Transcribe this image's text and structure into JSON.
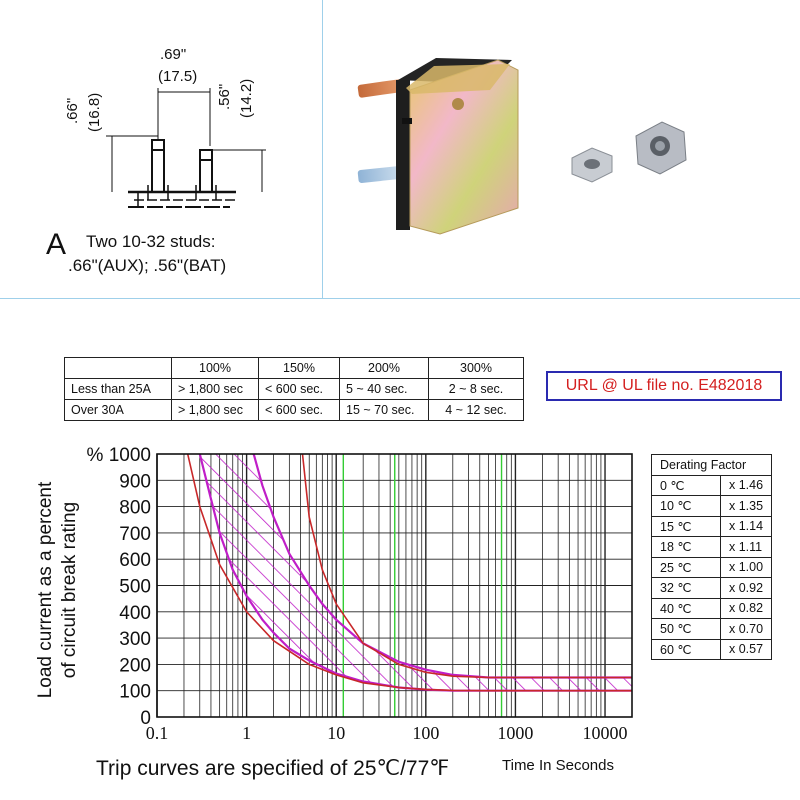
{
  "drawing": {
    "width_label_in": ".69\"",
    "width_label_mm": "(17.5)",
    "aux_height_in": ".66\"",
    "aux_height_mm": "(16.8)",
    "bat_height_in": ".56\"",
    "bat_height_mm": "(14.2)",
    "letter": "A",
    "studs_line1": "Two 10-32 studs:",
    "studs_line2": ".66\"(AUX); .56\"(BAT)"
  },
  "colors": {
    "trip_band": "#c01ec8",
    "curve": "#c8282a",
    "green_lines": "#33cc33",
    "ul_text": "#d42020",
    "ul_border": "#2a2ab0",
    "divider": "#9fd0ea"
  },
  "trip_table": {
    "headers": [
      "",
      "100%",
      "150%",
      "200%",
      "300%"
    ],
    "rows": [
      [
        "Less than 25A",
        "> 1,800 sec",
        "< 600 sec.",
        "5 ~ 40 sec.",
        "2 ~ 8 sec."
      ],
      [
        "Over 30A",
        "> 1,800 sec",
        "< 600 sec.",
        "15 ~ 70 sec.",
        "4 ~ 12 sec."
      ]
    ]
  },
  "ul_note": "URL @ UL file no. E482018",
  "derating": {
    "title": "Derating Factor",
    "rows": [
      [
        "0 ℃",
        "x 1.46"
      ],
      [
        "10 ℃",
        "x 1.35"
      ],
      [
        "15 ℃",
        "x 1.14"
      ],
      [
        "18 ℃",
        "x 1.11"
      ],
      [
        "25 ℃",
        "x 1.00"
      ],
      [
        "32 ℃",
        "x 0.92"
      ],
      [
        "40 ℃",
        "x 0.82"
      ],
      [
        "50 ℃",
        "x 0.70"
      ],
      [
        "60 ℃",
        "x 0.57"
      ]
    ]
  },
  "chart_data": {
    "type": "line",
    "xscale": "log",
    "xlim": [
      0.1,
      20000
    ],
    "ylim": [
      0,
      1000
    ],
    "y_ticks": [
      0,
      100,
      200,
      300,
      400,
      500,
      600,
      700,
      800,
      900,
      1000
    ],
    "y_tick_labels": [
      "0",
      "100",
      "200",
      "300",
      "400",
      "500",
      "600",
      "700",
      "800",
      "900",
      "% 1000"
    ],
    "x_ticks": [
      0.1,
      1,
      10,
      100,
      1000,
      10000
    ],
    "x_tick_labels": [
      "0.1",
      "1",
      "10",
      "100",
      "1000",
      "10000"
    ],
    "ylabel_line1": "Load current as a percent",
    "ylabel_line2": "of circuit break rating",
    "xlabel": "Time In Seconds",
    "footer": "Trip curves are specified of 25℃/77℉",
    "green_lines_x": [
      12,
      45,
      700
    ],
    "grid": true,
    "series": [
      {
        "role": "band-lower",
        "x": [
          0.3,
          0.4,
          0.5,
          0.7,
          1,
          1.5,
          2,
          3,
          5,
          10,
          20,
          50,
          100,
          200,
          500,
          1000,
          20000
        ],
        "y": [
          1000,
          830,
          700,
          560,
          460,
          370,
          320,
          260,
          215,
          165,
          135,
          112,
          104,
          100,
          100,
          100,
          100
        ]
      },
      {
        "role": "band-upper",
        "x": [
          1.2,
          1.5,
          2,
          3,
          5,
          7,
          10,
          20,
          50,
          100,
          200,
          500,
          1000,
          20000
        ],
        "y": [
          1000,
          880,
          760,
          620,
          500,
          430,
          370,
          280,
          210,
          180,
          160,
          150,
          150,
          150
        ]
      },
      {
        "role": "curve-a",
        "x": [
          0.22,
          0.3,
          0.5,
          1,
          2,
          5,
          10,
          20,
          50,
          100,
          200,
          500,
          1000,
          20000
        ],
        "y": [
          1000,
          800,
          580,
          400,
          290,
          200,
          160,
          130,
          112,
          105,
          101,
          100,
          100,
          100
        ]
      },
      {
        "role": "curve-b",
        "x": [
          4.2,
          5,
          7,
          10,
          20,
          50,
          100,
          200,
          500,
          1000,
          20000
        ],
        "y": [
          1000,
          760,
          560,
          430,
          280,
          200,
          170,
          155,
          150,
          150,
          150
        ]
      }
    ]
  }
}
